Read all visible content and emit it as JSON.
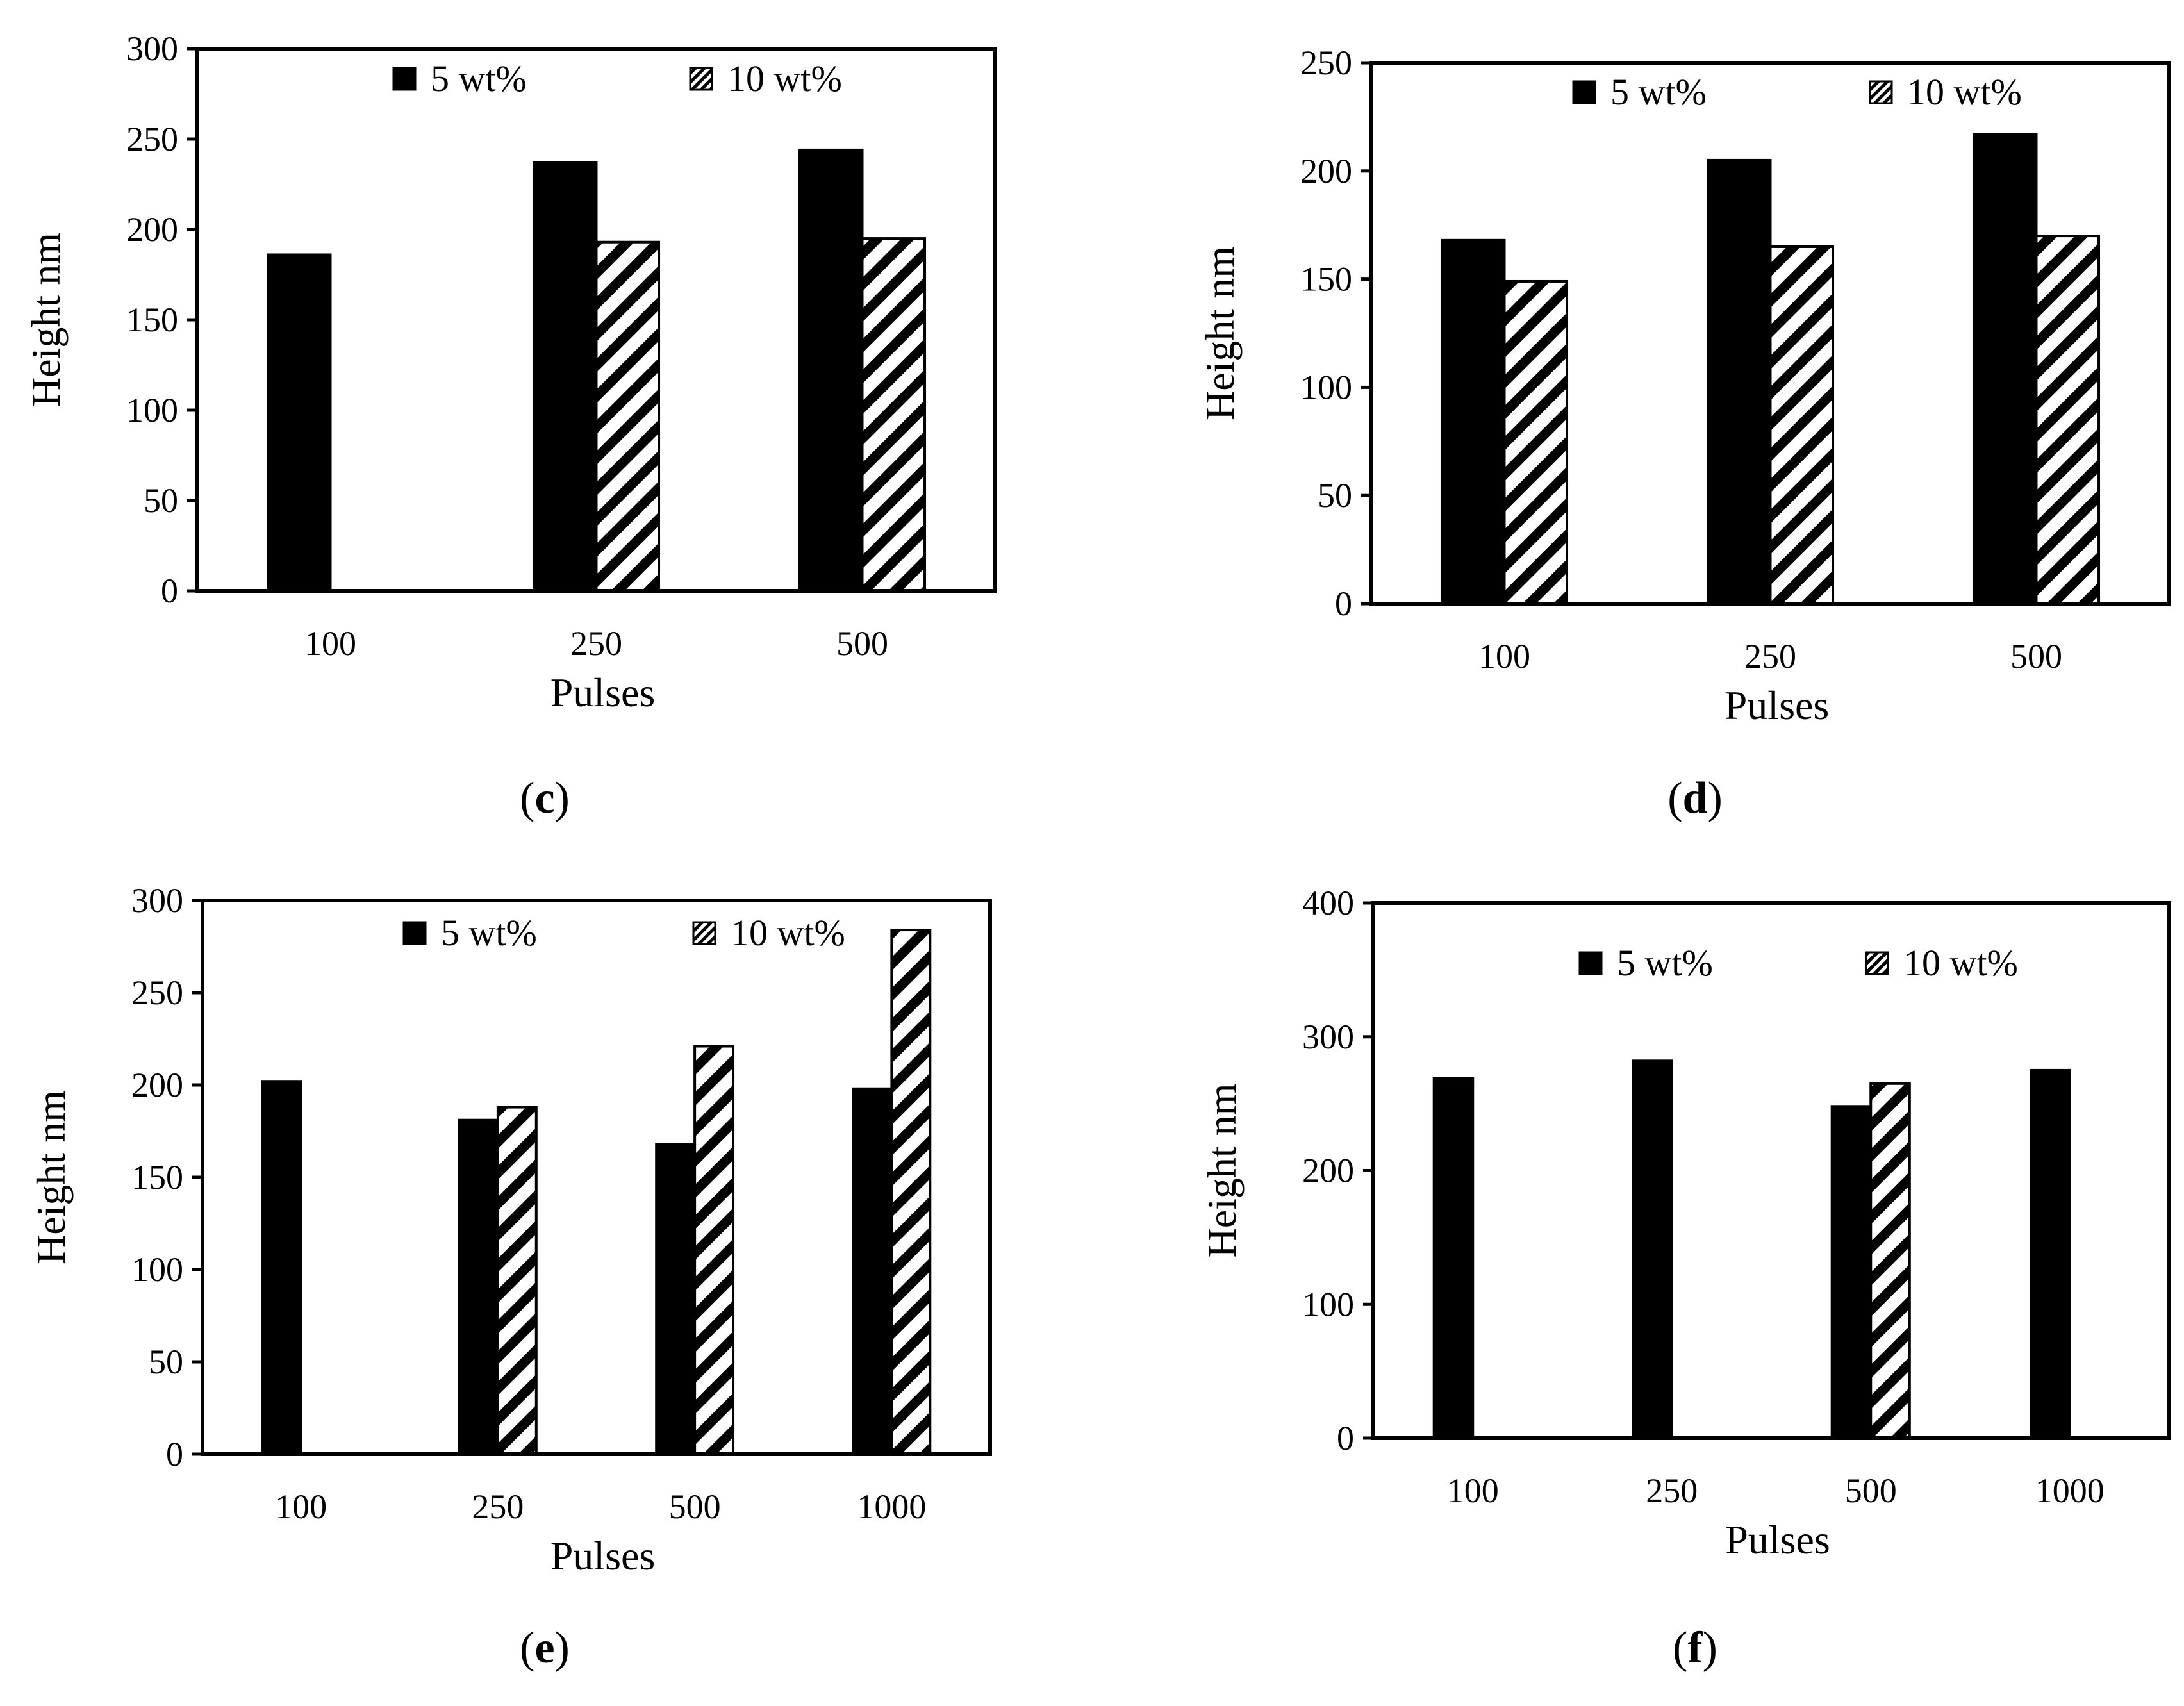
{
  "figure": {
    "colors": {
      "series_5wt": "#000000",
      "series_10wt_hatch": "#000000",
      "background": "#ffffff"
    }
  },
  "chart_data": [
    {
      "panel": "c",
      "caption": {
        "open": "(",
        "letter": "c",
        "close": ")"
      },
      "type": "bar",
      "xlabel": "Pulses",
      "ylabel": "Height nm",
      "categories": [
        "100",
        "250",
        "500"
      ],
      "ylim": [
        0,
        300
      ],
      "yticks": [
        0,
        50,
        100,
        150,
        200,
        250,
        300
      ],
      "legend": [
        "5 wt%",
        "10 wt%"
      ],
      "legend_position": "top",
      "series": [
        {
          "name": "5 wt%",
          "pattern": "solid",
          "values": [
            186,
            237,
            244
          ]
        },
        {
          "name": "10 wt%",
          "pattern": "hatch",
          "values": [
            null,
            193,
            195
          ]
        }
      ]
    },
    {
      "panel": "d",
      "caption": {
        "open": "(",
        "letter": "d",
        "close": ")"
      },
      "type": "bar",
      "xlabel": "Pulses",
      "ylabel": "Height nm",
      "categories": [
        "100",
        "250",
        "500"
      ],
      "ylim": [
        0,
        250
      ],
      "yticks": [
        0,
        50,
        100,
        150,
        200,
        250
      ],
      "legend": [
        "5 wt%",
        "10 wt%"
      ],
      "legend_position": "top",
      "series": [
        {
          "name": "5 wt%",
          "pattern": "solid",
          "values": [
            168,
            205,
            217
          ]
        },
        {
          "name": "10 wt%",
          "pattern": "hatch",
          "values": [
            149,
            165,
            170
          ]
        }
      ]
    },
    {
      "panel": "e",
      "caption": {
        "open": "(",
        "letter": "e",
        "close": ")"
      },
      "type": "bar",
      "xlabel": "Pulses",
      "ylabel": "Height nm",
      "categories": [
        "100",
        "250",
        "500",
        "1000"
      ],
      "ylim": [
        0,
        300
      ],
      "yticks": [
        0,
        50,
        100,
        150,
        200,
        250,
        300
      ],
      "legend": [
        "5 wt%",
        "10 wt%"
      ],
      "legend_position": "top",
      "series": [
        {
          "name": "5 wt%",
          "pattern": "solid",
          "values": [
            202,
            181,
            168,
            198
          ]
        },
        {
          "name": "10 wt%",
          "pattern": "hatch",
          "values": [
            null,
            188,
            221,
            284
          ]
        }
      ]
    },
    {
      "panel": "f",
      "caption": {
        "open": "(",
        "letter": "f",
        "close": ")"
      },
      "type": "bar",
      "xlabel": "Pulses",
      "ylabel": "Height nm",
      "categories": [
        "100",
        "250",
        "500",
        "1000"
      ],
      "ylim": [
        0,
        400
      ],
      "yticks": [
        0,
        100,
        200,
        300,
        400
      ],
      "legend": [
        "5 wt%",
        "10 wt%"
      ],
      "legend_position": "top",
      "series": [
        {
          "name": "5 wt%",
          "pattern": "solid",
          "values": [
            269,
            282,
            248,
            275
          ]
        },
        {
          "name": "10 wt%",
          "pattern": "hatch",
          "values": [
            null,
            null,
            265,
            null
          ]
        }
      ]
    }
  ]
}
